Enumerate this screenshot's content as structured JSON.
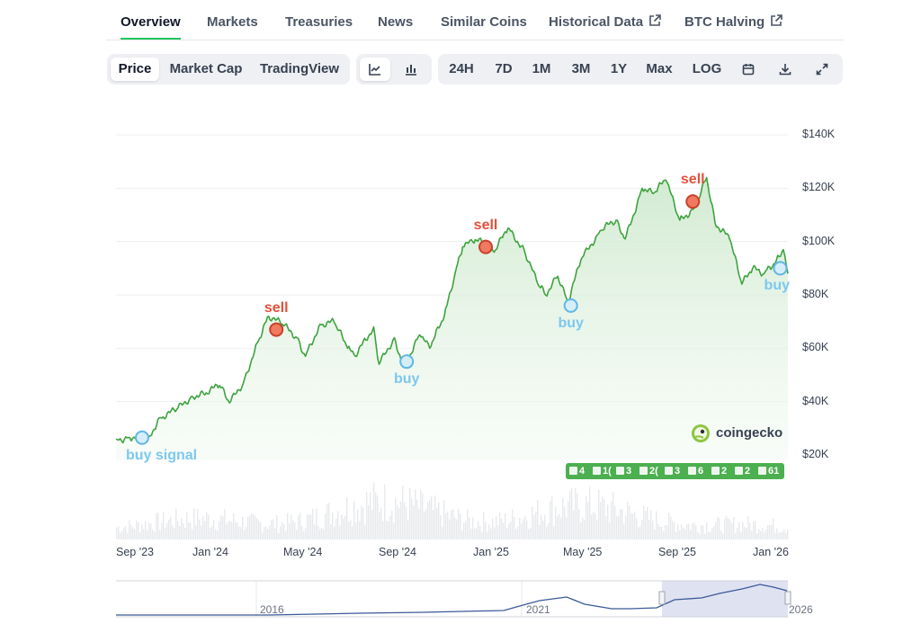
{
  "tabs": [
    {
      "label": "Overview",
      "active": true
    },
    {
      "label": "Markets"
    },
    {
      "label": "Treasuries"
    },
    {
      "label": "News"
    },
    {
      "label": "Similar Coins"
    },
    {
      "label": "Historical Data",
      "external": true
    },
    {
      "label": "BTC Halving",
      "external": true
    }
  ],
  "toolbar": {
    "views": [
      "Price",
      "Market Cap",
      "TradingView"
    ],
    "selected_view": "Price",
    "chart_types": [
      "line-chart-icon",
      "candlestick-icon"
    ],
    "selected_chart_type": "line-chart-icon",
    "ranges": [
      "24H",
      "7D",
      "1M",
      "3M",
      "1Y",
      "Max",
      "LOG"
    ],
    "actions": [
      "calendar-icon",
      "download-icon",
      "expand-icon"
    ]
  },
  "watermark": "coingecko",
  "news_markers": [
    "4",
    "1(",
    "3",
    "2(",
    "3",
    "6",
    "2",
    "2",
    "61"
  ],
  "navigator": {
    "labels": [
      "2016",
      "2021",
      "2026"
    ]
  },
  "colors": {
    "line": "#3ea33e",
    "fill_top": "#cfe9cf",
    "sell": "#e5503a",
    "buy": "#7cc8ee",
    "accent": "#22c55e",
    "volume": "#e5e7eb"
  },
  "chart_data": {
    "type": "area",
    "title": "",
    "xlabel": "",
    "ylabel": "",
    "x_ticks": [
      "Sep '23",
      "Jan '24",
      "May '24",
      "Sep '24",
      "Jan '25",
      "May '25",
      "Sep '25",
      "Jan '26"
    ],
    "y_ticks": [
      "$20K",
      "$40K",
      "$60K",
      "$80K",
      "$100K",
      "$120K",
      "$140K"
    ],
    "ylim": [
      20000,
      140000
    ],
    "xlim": [
      "2023-08-28",
      "2026-01-20"
    ],
    "grid": true,
    "series": [
      {
        "x": [
          "2023-08-28",
          "2023-09-15",
          "2023-10-10",
          "2023-10-25",
          "2023-11-15",
          "2023-12-05",
          "2023-12-20",
          "2024-01-10",
          "2024-01-23",
          "2024-02-10",
          "2024-02-28",
          "2024-03-14",
          "2024-04-01",
          "2024-04-20",
          "2024-05-01",
          "2024-05-20",
          "2024-06-07",
          "2024-06-25",
          "2024-07-05",
          "2024-07-29",
          "2024-08-05",
          "2024-08-25",
          "2024-09-06",
          "2024-09-27",
          "2024-10-10",
          "2024-10-29",
          "2024-11-12",
          "2024-11-22",
          "2024-12-05",
          "2024-12-17",
          "2025-01-02",
          "2025-01-20",
          "2025-02-10",
          "2025-02-28",
          "2025-03-10",
          "2025-03-26",
          "2025-04-08",
          "2025-04-25",
          "2025-05-20",
          "2025-06-10",
          "2025-06-22",
          "2025-07-14",
          "2025-07-28",
          "2025-08-14",
          "2025-09-01",
          "2025-09-22",
          "2025-10-06",
          "2025-10-17",
          "2025-11-05",
          "2025-11-21",
          "2025-12-05",
          "2025-12-20",
          "2026-01-05",
          "2026-01-14",
          "2026-01-20"
        ],
        "y": [
          26000,
          26500,
          27000,
          34000,
          37000,
          42000,
          43000,
          46000,
          39500,
          47000,
          62000,
          72000,
          69000,
          64000,
          57000,
          69000,
          70000,
          60000,
          57000,
          68000,
          54000,
          64000,
          53000,
          65000,
          60000,
          72000,
          88000,
          98000,
          100000,
          100000,
          96000,
          105000,
          97000,
          84000,
          80000,
          87000,
          77000,
          93000,
          104000,
          108000,
          101000,
          120000,
          118000,
          123000,
          108000,
          113000,
          124000,
          107000,
          101000,
          84000,
          90000,
          88000,
          93000,
          97000,
          88000
        ]
      }
    ],
    "signals": [
      {
        "label": "buy signal",
        "type": "buy",
        "x": "2023-10-01",
        "y": 26500
      },
      {
        "label": "sell",
        "type": "sell",
        "x": "2024-03-24",
        "y": 67000
      },
      {
        "label": "buy",
        "type": "buy",
        "x": "2024-09-10",
        "y": 55000
      },
      {
        "label": "sell",
        "type": "sell",
        "x": "2024-12-22",
        "y": 98000
      },
      {
        "label": "buy",
        "type": "buy",
        "x": "2025-04-12",
        "y": 76000
      },
      {
        "label": "sell",
        "type": "sell",
        "x": "2025-09-18",
        "y": 115000
      },
      {
        "label": "buy",
        "type": "buy",
        "x": "2026-01-10",
        "y": 90000
      }
    ],
    "volume": "bars (no printed values)"
  }
}
